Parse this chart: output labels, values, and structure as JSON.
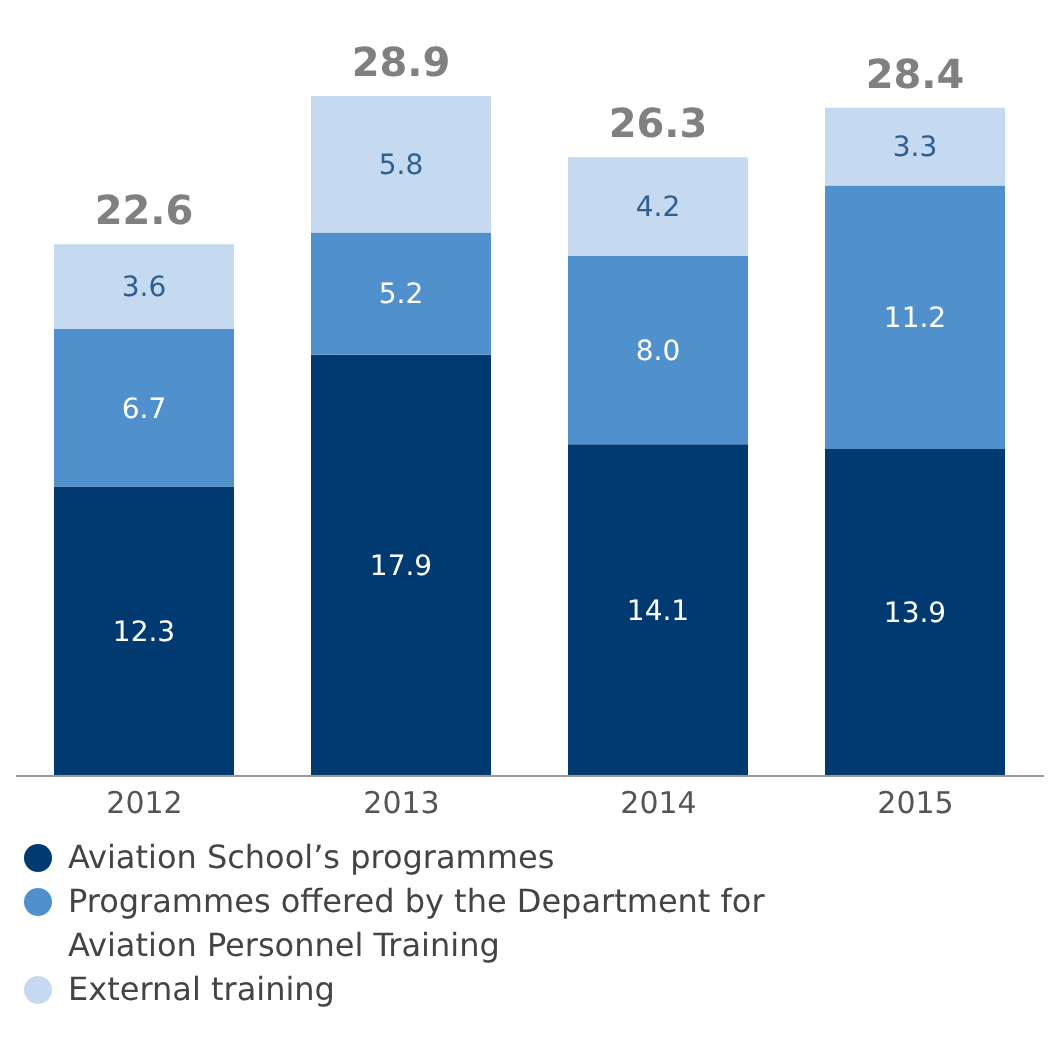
{
  "chart_data": {
    "type": "bar",
    "stacked": true,
    "categories": [
      "2012",
      "2013",
      "2014",
      "2015"
    ],
    "series": [
      {
        "name": "Aviation School’s programmes",
        "color": "#003a70",
        "values": [
          12.3,
          17.9,
          14.1,
          13.9
        ],
        "value_labels": [
          "12.3",
          "17.9",
          "14.1",
          "13.9"
        ]
      },
      {
        "name": "Programmes offered by the Department for Aviation Personnel Training",
        "color": "#4f90cd",
        "values": [
          6.7,
          5.2,
          8.0,
          11.2
        ],
        "value_labels": [
          "6.7",
          "5.2",
          "8.0",
          "11.2"
        ]
      },
      {
        "name": "External training",
        "color": "#c5d9f1",
        "values": [
          3.6,
          5.8,
          4.2,
          3.3
        ],
        "value_labels": [
          "3.6",
          "5.8",
          "4.2",
          "3.3"
        ]
      }
    ],
    "totals": [
      "22.6",
      "28.9",
      "26.3",
      "28.4"
    ],
    "legend": "bottom",
    "grid": false
  }
}
